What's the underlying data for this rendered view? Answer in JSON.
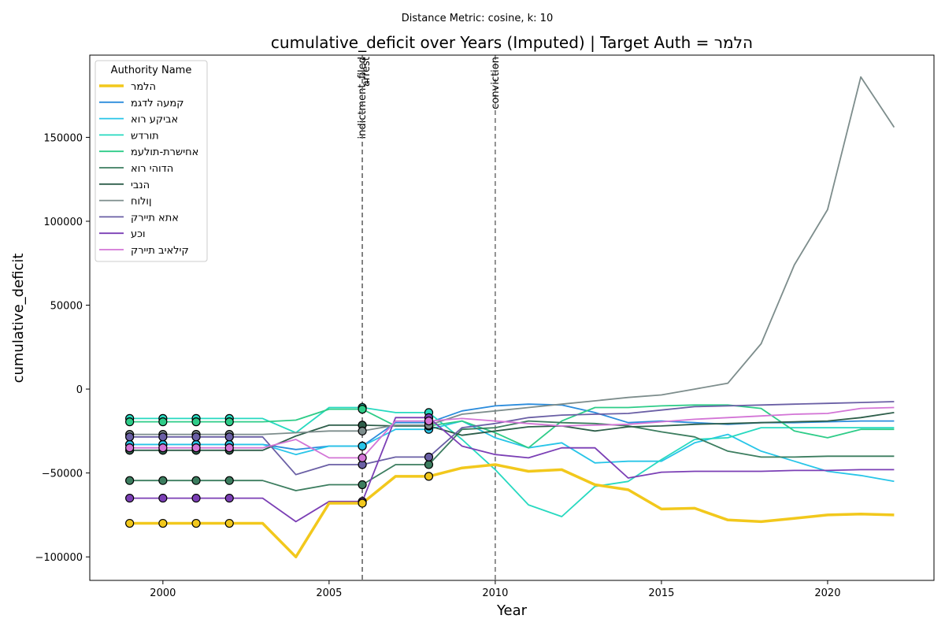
{
  "suptitle": "Distance Metric: cosine, k: 10",
  "chart_data": {
    "type": "line",
    "title": "cumulative_deficit over Years (Imputed) | Target Auth = הלמר",
    "xlabel": "Year",
    "ylabel": "cumulative_deficit",
    "xlim": [
      1997.8,
      2023.2
    ],
    "ylim": [
      -114000,
      199000
    ],
    "xticks": [
      2000,
      2005,
      2010,
      2015,
      2020
    ],
    "yticks": [
      -100000,
      -50000,
      0,
      50000,
      100000,
      150000
    ],
    "x": [
      1999,
      2000,
      2001,
      2002,
      2003,
      2004,
      2005,
      2006,
      2007,
      2008,
      2009,
      2010,
      2011,
      2012,
      2013,
      2014,
      2015,
      2016,
      2017,
      2018,
      2019,
      2020,
      2021,
      2022
    ],
    "imputed_years": [
      1999,
      2000,
      2001,
      2002,
      2006,
      2008
    ],
    "legend_title": "Authority Name",
    "legend_position": "upper-left",
    "grid": false,
    "events": [
      {
        "label": "indictment_filed",
        "x": 2006
      },
      {
        "label": "arrest",
        "x": 2006
      },
      {
        "label": "conviction",
        "x": 2010
      }
    ],
    "series": [
      {
        "name": "הלמר",
        "color": "#f2c81c",
        "target": true,
        "values": [
          -80000,
          -80000,
          -80000,
          -80000,
          -80000,
          -100000,
          -68000,
          -68000,
          -52000,
          -52000,
          -47000,
          -45000,
          -49000,
          -48000,
          -57000,
          -60000,
          -71500,
          -71000,
          -78000,
          -79000,
          -77000,
          -75000,
          -74500,
          -75000
        ]
      },
      {
        "name": "קמעה לדגמ",
        "color": "#2b8cdc",
        "target": false,
        "values": [
          -33000,
          -33000,
          -33000,
          -33000,
          -33000,
          -36000,
          -34000,
          -34000,
          -20000,
          -20000,
          -13000,
          -10000,
          -9000,
          -9500,
          -14000,
          -20000,
          -19000,
          -20000,
          -21000,
          -20000,
          -20000,
          -19500,
          -19000,
          -19000
        ]
      },
      {
        "name": "אביקע רוא",
        "color": "#28c5e8",
        "target": false,
        "values": [
          -33000,
          -33000,
          -33000,
          -33000,
          -33000,
          -39000,
          -34000,
          -34000,
          -24000,
          -24000,
          -19000,
          -29000,
          -35000,
          -32000,
          -44000,
          -43000,
          -43000,
          -32000,
          -27000,
          -37000,
          -43000,
          -49000,
          -51500,
          -55000
        ]
      },
      {
        "name": "תורדש",
        "color": "#27d9c0",
        "target": false,
        "values": [
          -17500,
          -17500,
          -17500,
          -17500,
          -17500,
          -26000,
          -11000,
          -11000,
          -14000,
          -14000,
          -30000,
          -48000,
          -69000,
          -76000,
          -58000,
          -55000,
          -42000,
          -30000,
          -29000,
          -23000,
          -23000,
          -23000,
          -23000,
          -23000
        ]
      },
      {
        "name": "אחישרת-תולעמ",
        "color": "#2ecc88",
        "target": false,
        "values": [
          -19500,
          -19500,
          -19500,
          -19500,
          -19500,
          -18500,
          -12000,
          -12000,
          -22000,
          -22000,
          -19000,
          -26000,
          -35000,
          -19000,
          -11000,
          -11000,
          -10000,
          -9500,
          -9500,
          -11500,
          -25000,
          -29000,
          -24000,
          -24000
        ]
      },
      {
        "name": "הדוהי רוא",
        "color": "#3c7d5f",
        "target": false,
        "values": [
          -54500,
          -54500,
          -54500,
          -54500,
          -54500,
          -60500,
          -57000,
          -57000,
          -45000,
          -45000,
          -24000,
          -23000,
          -19000,
          -20000,
          -20500,
          -22000,
          -25500,
          -28500,
          -37000,
          -40500,
          -40500,
          -40000,
          -40000,
          -40000
        ]
      },
      {
        "name": "הנבי",
        "color": "#2e5e4a",
        "target": false,
        "values": [
          -36500,
          -36500,
          -36500,
          -36500,
          -36500,
          -28000,
          -21500,
          -21500,
          -22000,
          -22000,
          -27500,
          -25000,
          -22500,
          -22000,
          -25000,
          -22500,
          -22000,
          -21000,
          -20500,
          -20000,
          -19500,
          -19000,
          -17000,
          -14000
        ]
      },
      {
        "name": "ןולוח",
        "color": "#7d8d8c",
        "target": false,
        "values": [
          -27000,
          -27000,
          -27000,
          -27000,
          -27000,
          -26000,
          -25000,
          -25000,
          -21500,
          -21500,
          -15000,
          -13000,
          -11000,
          -9000,
          -7000,
          -5000,
          -3500,
          0,
          3500,
          27000,
          74000,
          107000,
          186000,
          156000
        ]
      },
      {
        "name": "אתא תיירק",
        "color": "#6a5fa5",
        "target": false,
        "values": [
          -28500,
          -28500,
          -28500,
          -28500,
          -28500,
          -51000,
          -45000,
          -45000,
          -40500,
          -40500,
          -23000,
          -20500,
          -17000,
          -15500,
          -15000,
          -14500,
          -12500,
          -10500,
          -10000,
          -9500,
          -9000,
          -8500,
          -8000,
          -7500
        ]
      },
      {
        "name": "וכע",
        "color": "#7b3fb5",
        "target": false,
        "values": [
          -65000,
          -65000,
          -65000,
          -65000,
          -65000,
          -79000,
          -67000,
          -67000,
          -17000,
          -17000,
          -34000,
          -39000,
          -41000,
          -35000,
          -35000,
          -53000,
          -49500,
          -49000,
          -49000,
          -49000,
          -48500,
          -48500,
          -48000,
          -48000
        ]
      },
      {
        "name": "קילאיב תיירק",
        "color": "#d375d6",
        "target": false,
        "values": [
          -35000,
          -35000,
          -35000,
          -35000,
          -35000,
          -30000,
          -41000,
          -41000,
          -19000,
          -19000,
          -17500,
          -19000,
          -20500,
          -22000,
          -21500,
          -21000,
          -19500,
          -18000,
          -17000,
          -16000,
          -15000,
          -14500,
          -11500,
          -11000
        ]
      }
    ]
  }
}
